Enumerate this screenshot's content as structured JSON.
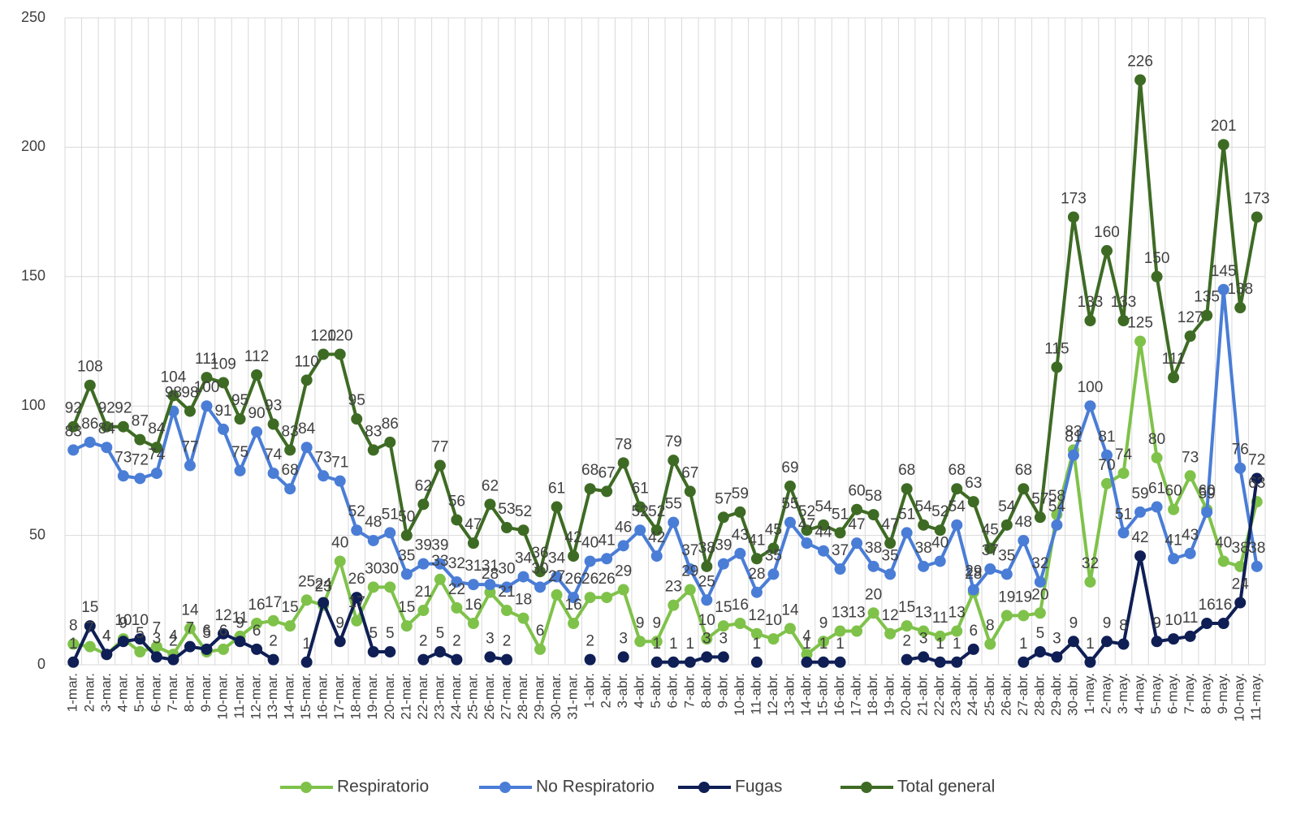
{
  "chart_data": {
    "type": "line",
    "categories": [
      "1-mar.",
      "2-mar.",
      "3-mar.",
      "4-mar.",
      "5-mar.",
      "6-mar.",
      "7-mar.",
      "8-mar.",
      "9-mar.",
      "10-mar.",
      "11-mar.",
      "12-mar.",
      "13-mar.",
      "14-mar.",
      "15-mar.",
      "16-mar.",
      "17-mar.",
      "18-mar.",
      "19-mar.",
      "20-mar.",
      "21-mar.",
      "22-mar.",
      "23-mar.",
      "24-mar.",
      "25-mar.",
      "26-mar.",
      "27-mar.",
      "28-mar.",
      "29-mar.",
      "30-mar.",
      "31-mar.",
      "1-abr.",
      "2-abr.",
      "3-abr.",
      "4-abr.",
      "5-abr.",
      "6-abr.",
      "7-abr.",
      "8-abr.",
      "9-abr.",
      "10-abr.",
      "11-abr.",
      "12-abr.",
      "13-abr.",
      "14-abr.",
      "15-abr.",
      "16-abr.",
      "17-abr.",
      "18-abr.",
      "19-abr.",
      "20-abr.",
      "21-abr.",
      "22-abr.",
      "23-abr.",
      "24-abr.",
      "25-abr.",
      "26-abr.",
      "27-abr.",
      "28-abr.",
      "29-abr.",
      "30-abr.",
      "1-may.",
      "2-may.",
      "3-may.",
      "4-may.",
      "5-may.",
      "6-may.",
      "7-may.",
      "8-may.",
      "9-may.",
      "10-may.",
      "11-may."
    ],
    "series": [
      {
        "name": "Respiratorio",
        "color": "#7fc24a",
        "values": [
          8,
          7,
          4,
          10,
          5,
          7,
          4,
          14,
          5,
          6,
          11,
          16,
          17,
          15,
          25,
          23,
          40,
          17,
          30,
          30,
          15,
          21,
          33,
          22,
          16,
          28,
          21,
          18,
          6,
          27,
          16,
          26,
          26,
          29,
          9,
          9,
          23,
          29,
          10,
          15,
          16,
          12,
          10,
          14,
          4,
          9,
          13,
          13,
          20,
          12,
          15,
          13,
          11,
          13,
          28,
          8,
          19,
          19,
          20,
          58,
          83,
          32,
          70,
          74,
          125,
          80,
          60,
          73,
          60,
          40,
          38,
          63
        ]
      },
      {
        "name": "No Respiratorio",
        "color": "#4a7dd6",
        "values": [
          83,
          86,
          84,
          73,
          72,
          74,
          98,
          77,
          100,
          91,
          75,
          90,
          74,
          68,
          84,
          73,
          71,
          52,
          48,
          51,
          35,
          39,
          39,
          32,
          31,
          31,
          30,
          34,
          30,
          34,
          26,
          40,
          41,
          46,
          52,
          42,
          55,
          37,
          25,
          39,
          43,
          28,
          35,
          55,
          47,
          44,
          37,
          47,
          38,
          35,
          51,
          38,
          40,
          54,
          29,
          37,
          35,
          48,
          32,
          54,
          81,
          100,
          81,
          51,
          59,
          61,
          41,
          43,
          59,
          145,
          76,
          38
        ]
      },
      {
        "name": "Fugas",
        "color": "#0f1f55",
        "values": [
          1,
          15,
          4,
          9,
          10,
          3,
          2,
          7,
          6,
          12,
          9,
          6,
          2,
          null,
          1,
          24,
          9,
          26,
          5,
          5,
          null,
          2,
          5,
          2,
          null,
          3,
          2,
          null,
          null,
          null,
          null,
          2,
          null,
          3,
          null,
          1,
          1,
          1,
          3,
          3,
          null,
          1,
          null,
          null,
          1,
          1,
          1,
          null,
          null,
          null,
          2,
          3,
          1,
          1,
          6,
          null,
          null,
          1,
          5,
          3,
          9,
          1,
          9,
          8,
          42,
          9,
          10,
          11,
          16,
          16,
          24,
          72
        ]
      },
      {
        "name": "Total general",
        "color": "#3e6b24",
        "values": [
          92,
          108,
          92,
          92,
          87,
          84,
          104,
          98,
          111,
          109,
          95,
          112,
          93,
          83,
          110,
          120,
          120,
          95,
          83,
          86,
          50,
          62,
          77,
          56,
          47,
          62,
          53,
          52,
          36,
          61,
          42,
          68,
          67,
          78,
          61,
          52,
          79,
          67,
          38,
          57,
          59,
          41,
          45,
          69,
          52,
          54,
          51,
          60,
          58,
          47,
          68,
          54,
          52,
          68,
          63,
          45,
          54,
          68,
          57,
          115,
          173,
          133,
          160,
          133,
          226,
          150,
          111,
          127,
          135,
          201,
          138,
          173
        ]
      }
    ],
    "ylim": [
      0,
      250
    ],
    "yticks": [
      0,
      50,
      100,
      150,
      200,
      250
    ],
    "grid": true,
    "legend": "bottom"
  }
}
